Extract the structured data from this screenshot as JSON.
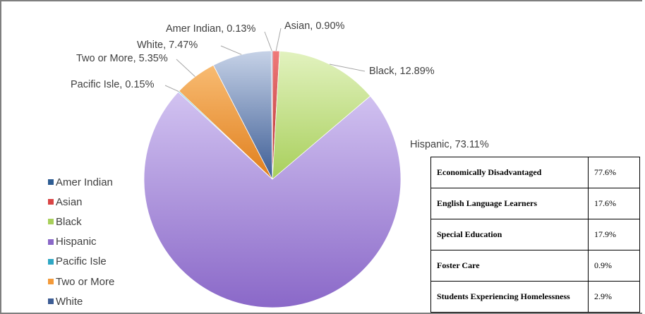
{
  "chart_data": {
    "type": "pie",
    "slices": [
      {
        "label": "Amer Indian",
        "value": 0.13,
        "data_label": "Amer Indian, 0.13%",
        "color": "#2e5d93"
      },
      {
        "label": "Asian",
        "value": 0.9,
        "data_label": "Asian, 0.90%",
        "color": "#d94545"
      },
      {
        "label": "Black",
        "value": 12.89,
        "data_label": "Black, 12.89%",
        "color": "#c6e28c"
      },
      {
        "label": "Hispanic",
        "value": 73.11,
        "data_label": "Hispanic, 73.11%",
        "color": "#b8a2e0"
      },
      {
        "label": "Pacific Isle",
        "value": 0.15,
        "data_label": "Pacific Isle, 0.15%",
        "color": "#2fa7c4"
      },
      {
        "label": "Two or More",
        "value": 5.35,
        "data_label": "Two or More, 5.35%",
        "color": "#f39a3a"
      },
      {
        "label": "White",
        "value": 7.47,
        "data_label": "White, 7.47%",
        "color": "#a9bad8"
      }
    ],
    "legend": [
      "Amer Indian",
      "Asian",
      "Black",
      "Hispanic",
      "Pacific Isle",
      "Two or More",
      "White"
    ],
    "legend_position": "left"
  },
  "stats_table": [
    {
      "label": "Economically Disadvantaged",
      "value": "77.6%"
    },
    {
      "label": "English Language Learners",
      "value": "17.6%"
    },
    {
      "label": "Special Education",
      "value": "17.9%"
    },
    {
      "label": "Foster Care",
      "value": "0.9%"
    },
    {
      "label": "Students Experiencing Homelessness",
      "value": "2.9%"
    }
  ]
}
